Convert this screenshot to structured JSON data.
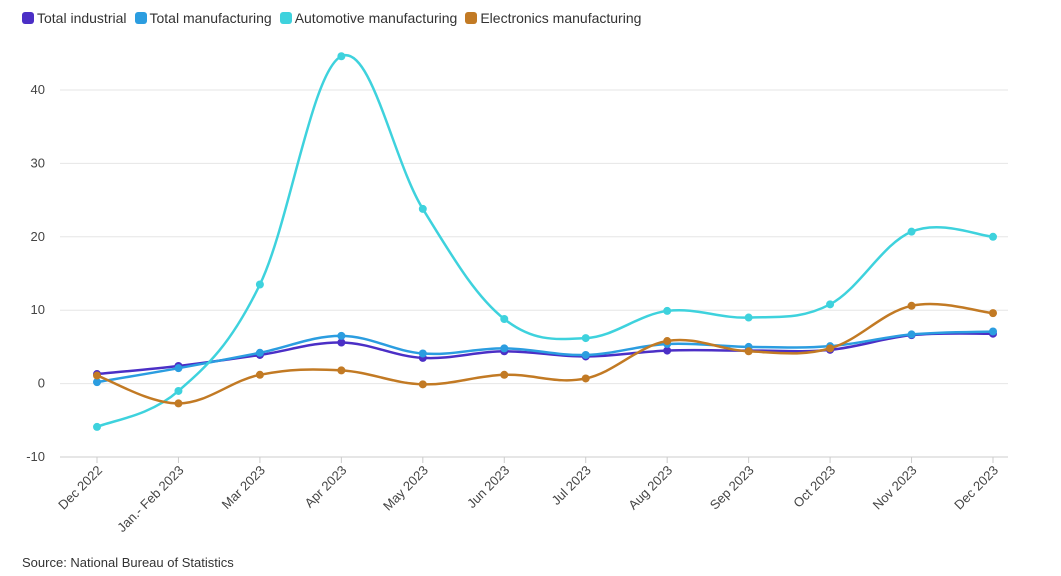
{
  "chart_data": {
    "type": "line",
    "title": "",
    "xlabel": "",
    "ylabel": "",
    "ylim": [
      -10,
      45
    ],
    "yticks": [
      -10,
      0,
      10,
      20,
      30,
      40
    ],
    "categories": [
      "Dec 2022",
      "Jan.- Feb 2023",
      "Mar 2023",
      "Apr 2023",
      "May 2023",
      "Jun 2023",
      "Jul 2023",
      "Aug 2023",
      "Sep 2023",
      "Oct 2023",
      "Nov 2023",
      "Dec 2023"
    ],
    "series": [
      {
        "name": "Total industrial",
        "color": "#4b2fc6",
        "values": [
          1.3,
          2.4,
          3.9,
          5.6,
          3.5,
          4.4,
          3.7,
          4.5,
          4.5,
          4.6,
          6.6,
          6.8
        ]
      },
      {
        "name": "Total manufacturing",
        "color": "#2b9de0",
        "values": [
          0.2,
          2.1,
          4.2,
          6.5,
          4.1,
          4.8,
          3.9,
          5.4,
          5.0,
          5.1,
          6.7,
          7.1
        ]
      },
      {
        "name": "Automotive manufacturing",
        "color": "#3ed2dd",
        "values": [
          -5.9,
          -1.0,
          13.5,
          44.6,
          23.8,
          8.8,
          6.2,
          9.9,
          9.0,
          10.8,
          20.7,
          20.0
        ]
      },
      {
        "name": "Electronics manufacturing",
        "color": "#c27a24",
        "values": [
          1.1,
          -2.7,
          1.2,
          1.8,
          -0.1,
          1.2,
          0.7,
          5.8,
          4.4,
          4.8,
          10.6,
          9.6
        ]
      }
    ],
    "legend": "top-left"
  },
  "source": "Source: National Bureau of Statistics"
}
